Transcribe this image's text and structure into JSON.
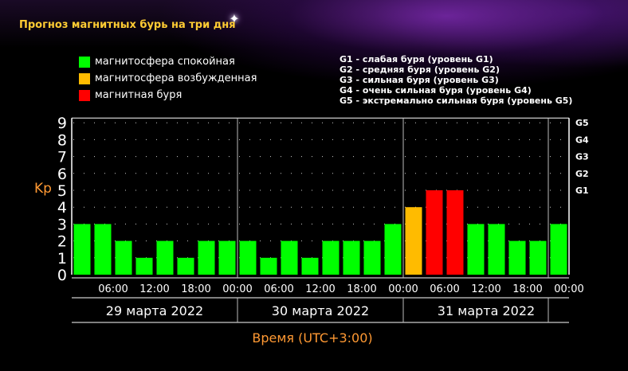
{
  "page": {
    "title": "Прогноз магнитных бурь на три дня"
  },
  "legend": [
    {
      "label": "магнитосфера спокойная",
      "color": "#00ff00"
    },
    {
      "label": "магнитосфера возбужденная",
      "color": "#ffbb00"
    },
    {
      "label": "магнитная буря",
      "color": "#ff0000"
    }
  ],
  "g_legend": [
    "G1 - слабая буря (уровень G1)",
    "G2 - средняя буря (уровень G2)",
    "G3 - сильная буря (уровень G3)",
    "G4 - очень сильная буря (уровень G4)",
    "G5 - экстремально сильная буря (уровень G5)"
  ],
  "chart_data": {
    "type": "bar",
    "ylabel": "Kp",
    "xlabel": "Время (UTC+3:00)",
    "ylim": [
      0,
      9
    ],
    "y_ticks": [
      "0",
      "1",
      "2",
      "3",
      "4",
      "5",
      "6",
      "7",
      "8",
      "9"
    ],
    "g_levels": [
      {
        "label": "G1",
        "kp": 5
      },
      {
        "label": "G2",
        "kp": 6
      },
      {
        "label": "G3",
        "kp": 7
      },
      {
        "label": "G4",
        "kp": 8
      },
      {
        "label": "G5",
        "kp": 9
      }
    ],
    "x_tick_labels": [
      "06:00",
      "12:00",
      "18:00",
      "00:00",
      "06:00",
      "12:00",
      "18:00",
      "00:00",
      "06:00",
      "12:00",
      "18:00",
      "00:00"
    ],
    "days": [
      "29 марта 2022",
      "30 марта 2022",
      "31 марта 2022"
    ],
    "grid": true,
    "series": [
      {
        "values": [
          3,
          3,
          2,
          1,
          2,
          1,
          2,
          2,
          2,
          1,
          2,
          1,
          2,
          2,
          2,
          3,
          4,
          5,
          5,
          3,
          3,
          2,
          2,
          3
        ]
      }
    ],
    "bar_colors": [
      "#00ff00",
      "#00ff00",
      "#00ff00",
      "#00ff00",
      "#00ff00",
      "#00ff00",
      "#00ff00",
      "#00ff00",
      "#00ff00",
      "#00ff00",
      "#00ff00",
      "#00ff00",
      "#00ff00",
      "#00ff00",
      "#00ff00",
      "#00ff00",
      "#ffbb00",
      "#ff0000",
      "#ff0000",
      "#00ff00",
      "#00ff00",
      "#00ff00",
      "#00ff00",
      "#00ff00"
    ]
  }
}
